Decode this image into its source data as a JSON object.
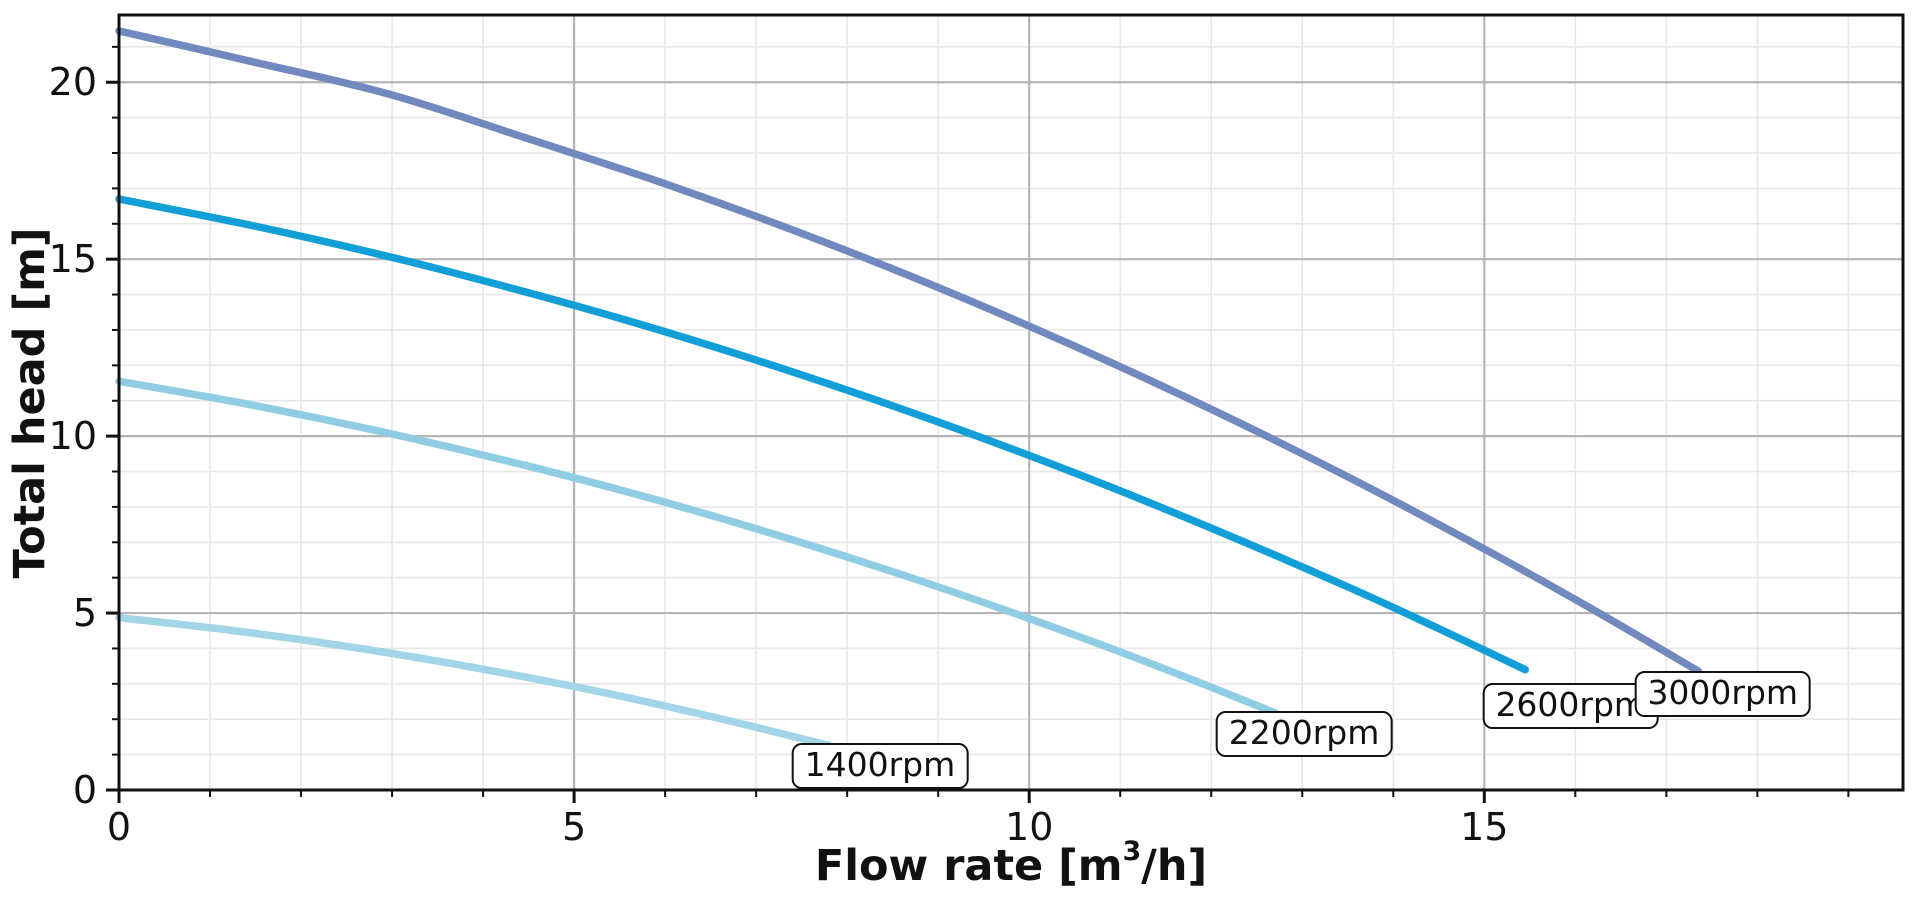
{
  "chart_data": {
    "type": "line",
    "title": "",
    "xlabel": "Flow rate [m³/h]",
    "xlabel_parts": {
      "pre": "Flow rate [m",
      "sup": "3",
      "post": "/h]"
    },
    "ylabel": "Total head [m]",
    "xlim": [
      0,
      19.6
    ],
    "ylim": [
      0,
      21.9
    ],
    "x_major_ticks": [
      0,
      5,
      10,
      15
    ],
    "y_major_ticks": [
      0,
      5,
      10,
      15,
      20
    ],
    "x_minor_step": 1,
    "y_minor_step": 1,
    "grid": "major+minor",
    "legend": "inline-end-labels",
    "colors": {
      "background": "#ffffff",
      "axis": "#111111",
      "tick_label": "#111111",
      "grid_major": "#b5b5b5",
      "grid_minor": "#e7e7e7"
    },
    "series": [
      {
        "label": "1400rpm",
        "color": "#a2d5e7",
        "label_anchor": [
          8.36,
          0.68
        ],
        "points": [
          [
            0,
            4.87
          ],
          [
            1.3,
            4.49
          ],
          [
            2.6,
            4.02
          ],
          [
            3.9,
            3.46
          ],
          [
            5.2,
            2.82
          ],
          [
            6.5,
            2.08
          ],
          [
            7.8,
            1.26
          ]
        ]
      },
      {
        "label": "2200rpm",
        "color": "#90cce4",
        "label_anchor": [
          13.02,
          1.58
        ],
        "points": [
          [
            0,
            11.55
          ],
          [
            1.5,
            10.86
          ],
          [
            3,
            10.06
          ],
          [
            4.5,
            9.15
          ],
          [
            6,
            8.13
          ],
          [
            7.5,
            6.99
          ],
          [
            9,
            5.74
          ],
          [
            10.5,
            4.38
          ],
          [
            11.6,
            3.31
          ],
          [
            12.7,
            2.18
          ]
        ]
      },
      {
        "label": "2600rpm",
        "color": "#129fd8",
        "label_anchor": [
          15.95,
          2.37
        ],
        "points": [
          [
            0,
            16.7
          ],
          [
            1.5,
            15.93
          ],
          [
            3,
            15.05
          ],
          [
            4.5,
            14.05
          ],
          [
            6,
            12.95
          ],
          [
            7.5,
            11.73
          ],
          [
            9,
            10.4
          ],
          [
            10.5,
            8.96
          ],
          [
            12,
            7.4
          ],
          [
            13.5,
            5.74
          ],
          [
            14.5,
            4.56
          ],
          [
            15.45,
            3.4
          ]
        ]
      },
      {
        "label": "3000rpm",
        "color": "#7189bf",
        "label_anchor": [
          17.62,
          2.71
        ],
        "points": [
          [
            0,
            21.45
          ],
          [
            1.5,
            20.56
          ],
          [
            3,
            19.64
          ],
          [
            4.5,
            18.4
          ],
          [
            6,
            17.13
          ],
          [
            7.5,
            15.73
          ],
          [
            9,
            14.2
          ],
          [
            10.5,
            12.54
          ],
          [
            12,
            10.76
          ],
          [
            13.5,
            8.85
          ],
          [
            15,
            6.81
          ],
          [
            16.2,
            5.09
          ],
          [
            17.35,
            3.36
          ]
        ]
      }
    ]
  }
}
